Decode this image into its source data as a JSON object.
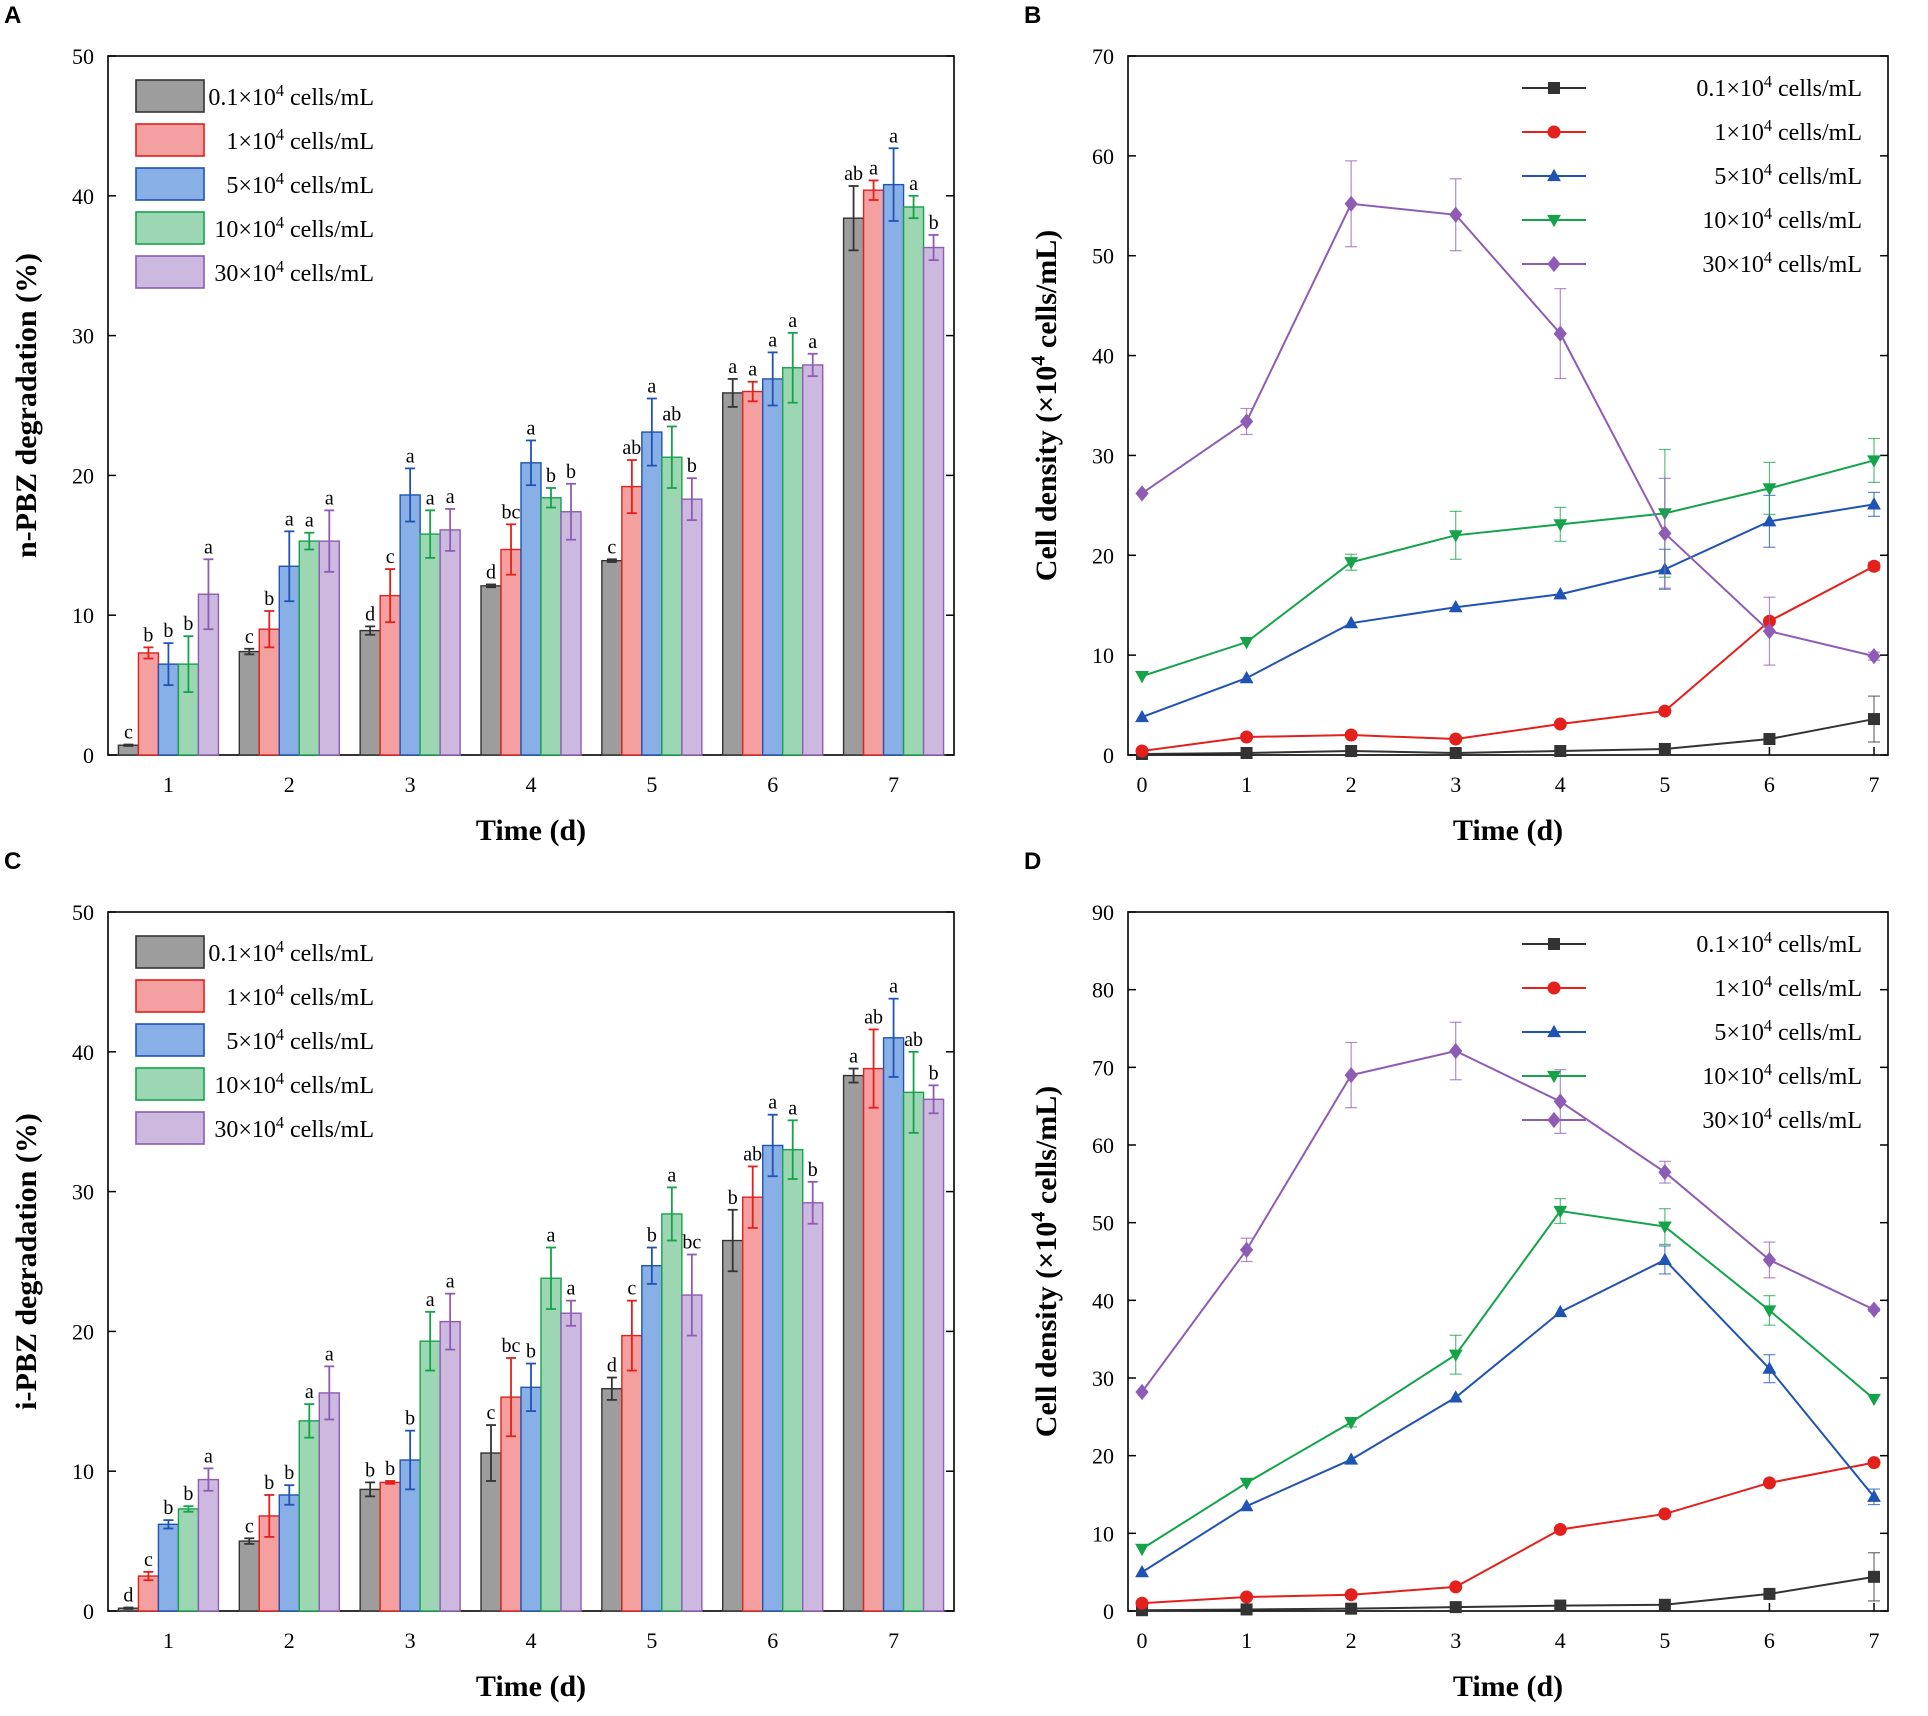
{
  "colors": {
    "0.1": {
      "stroke": "#333333",
      "fill": "#9d9d9d"
    },
    "1": {
      "stroke": "#e3201b",
      "fill": "#f4a0a0"
    },
    "5": {
      "stroke": "#1f53b4",
      "fill": "#89b0e6"
    },
    "10": {
      "stroke": "#15a34a",
      "fill": "#9dd6b2"
    },
    "30": {
      "stroke": "#8e5cb4",
      "fill": "#cdb8e0"
    }
  },
  "chart_data": [
    {
      "panel": "A",
      "type": "bar",
      "xlabel": "Time (d)",
      "ylabel": "n-PBZ degradation (%)",
      "ylim": [
        0,
        50
      ],
      "yticks": [
        "0",
        "10",
        "20",
        "30",
        "40",
        "50"
      ],
      "categories": [
        "1",
        "2",
        "3",
        "4",
        "5",
        "6",
        "7"
      ],
      "legend_position": "top-left",
      "series": [
        {
          "key": "0.1",
          "base": "0.1×10",
          "exp": "4",
          "unit": " cells/mL",
          "values": [
            0.7,
            7.4,
            8.9,
            12.1,
            13.9,
            25.9,
            38.4
          ],
          "errors": [
            0.05,
            0.2,
            0.3,
            0.1,
            0.1,
            1.0,
            2.3
          ],
          "labels": [
            "c",
            "c",
            "d",
            "d",
            "c",
            "a",
            "ab"
          ]
        },
        {
          "key": "1",
          "base": "1×10",
          "exp": "4",
          "unit": " cells/mL",
          "values": [
            7.3,
            9.0,
            11.4,
            14.7,
            19.2,
            26.0,
            40.4
          ],
          "errors": [
            0.4,
            1.3,
            1.9,
            1.8,
            1.9,
            0.7,
            0.7
          ],
          "labels": [
            "b",
            "b",
            "c",
            "bc",
            "ab",
            "a",
            "a"
          ]
        },
        {
          "key": "5",
          "base": "5×10",
          "exp": "4",
          "unit": " cells/mL",
          "values": [
            6.5,
            13.5,
            18.6,
            20.9,
            23.1,
            26.9,
            40.8
          ],
          "errors": [
            1.5,
            2.5,
            1.9,
            1.6,
            2.4,
            1.9,
            2.6
          ],
          "labels": [
            "b",
            "a",
            "a",
            "a",
            "a",
            "a",
            "a"
          ]
        },
        {
          "key": "10",
          "base": "10×10",
          "exp": "4",
          "unit": " cells/mL",
          "values": [
            6.5,
            15.3,
            15.8,
            18.4,
            21.3,
            27.7,
            39.2
          ],
          "errors": [
            2.0,
            0.6,
            1.7,
            0.7,
            2.2,
            2.5,
            0.8
          ],
          "labels": [
            "b",
            "a",
            "a",
            "b",
            "ab",
            "a",
            "a"
          ]
        },
        {
          "key": "30",
          "base": "30×10",
          "exp": "4",
          "unit": " cells/mL",
          "values": [
            11.5,
            15.3,
            16.1,
            17.4,
            18.3,
            27.9,
            36.3
          ],
          "errors": [
            2.5,
            2.2,
            1.5,
            2.0,
            1.5,
            0.8,
            0.9
          ],
          "labels": [
            "a",
            "a",
            "a",
            "b",
            "b",
            "a",
            "b"
          ]
        }
      ]
    },
    {
      "panel": "B",
      "type": "line",
      "xlabel": "Time (d)",
      "ylabel_base": "Cell density (×10",
      "ylabel_exp": "4",
      "ylabel_unit": " cells/mL)",
      "ylim": [
        0,
        70
      ],
      "yticks": [
        "0",
        "10",
        "20",
        "30",
        "40",
        "50",
        "60",
        "70"
      ],
      "x": [
        0,
        1,
        2,
        3,
        4,
        5,
        6,
        7
      ],
      "xticks": [
        "0",
        "1",
        "2",
        "3",
        "4",
        "5",
        "6",
        "7"
      ],
      "legend_position": "top-right",
      "series": [
        {
          "key": "0.1",
          "marker": "square",
          "base": "0.1×10",
          "exp": "4",
          "unit": " cells/mL",
          "values": [
            0.1,
            0.2,
            0.4,
            0.2,
            0.4,
            0.6,
            1.6,
            3.6
          ],
          "errors": [
            0,
            0,
            0,
            0,
            0,
            0.3,
            0.3,
            2.3
          ]
        },
        {
          "key": "1",
          "marker": "circle",
          "base": "1×10",
          "exp": "4",
          "unit": " cells/mL",
          "values": [
            0.4,
            1.8,
            2.0,
            1.6,
            3.1,
            4.4,
            13.4,
            18.9
          ],
          "errors": [
            0,
            0,
            0,
            0,
            0,
            0,
            0,
            0.4
          ]
        },
        {
          "key": "5",
          "marker": "triangle-up",
          "base": "5×10",
          "exp": "4",
          "unit": " cells/mL",
          "values": [
            3.8,
            7.7,
            13.2,
            14.8,
            16.1,
            18.6,
            23.4,
            25.1
          ],
          "errors": [
            0,
            0,
            0,
            0,
            0,
            2.0,
            2.6,
            1.2
          ]
        },
        {
          "key": "10",
          "marker": "triangle-down",
          "base": "10×10",
          "exp": "4",
          "unit": " cells/mL",
          "values": [
            7.9,
            11.3,
            19.3,
            22.0,
            23.1,
            24.2,
            26.7,
            29.5
          ],
          "errors": [
            0,
            0,
            0.8,
            2.4,
            1.7,
            6.4,
            2.6,
            2.2
          ]
        },
        {
          "key": "30",
          "marker": "diamond",
          "base": "30×10",
          "exp": "4",
          "unit": " cells/mL",
          "values": [
            26.2,
            33.4,
            55.2,
            54.1,
            42.2,
            22.2,
            12.4,
            9.9
          ],
          "errors": [
            0,
            1.3,
            4.3,
            3.6,
            4.5,
            5.5,
            3.4,
            0.4
          ]
        }
      ]
    },
    {
      "panel": "C",
      "type": "bar",
      "xlabel": "Time (d)",
      "ylabel": "i-PBZ degradation (%)",
      "ylim": [
        0,
        50
      ],
      "yticks": [
        "0",
        "10",
        "20",
        "30",
        "40",
        "50"
      ],
      "categories": [
        "1",
        "2",
        "3",
        "4",
        "5",
        "6",
        "7"
      ],
      "legend_position": "top-left",
      "series": [
        {
          "key": "0.1",
          "base": "0.1×10",
          "exp": "4",
          "unit": " cells/mL",
          "values": [
            0.2,
            5.0,
            8.7,
            11.3,
            15.9,
            26.5,
            38.3
          ],
          "errors": [
            0.05,
            0.2,
            0.5,
            2.0,
            0.8,
            2.2,
            0.5
          ],
          "labels": [
            "d",
            "c",
            "b",
            "c",
            "d",
            "b",
            "a"
          ]
        },
        {
          "key": "1",
          "base": "1×10",
          "exp": "4",
          "unit": " cells/mL",
          "values": [
            2.5,
            6.8,
            9.2,
            15.3,
            19.7,
            29.6,
            38.8
          ],
          "errors": [
            0.3,
            1.5,
            0.1,
            2.8,
            2.5,
            2.2,
            2.8
          ],
          "labels": [
            "c",
            "b",
            "b",
            "bc",
            "c",
            "ab",
            "ab"
          ]
        },
        {
          "key": "5",
          "base": "5×10",
          "exp": "4",
          "unit": " cells/mL",
          "values": [
            6.2,
            8.3,
            10.8,
            16.0,
            24.7,
            33.3,
            41.0
          ],
          "errors": [
            0.3,
            0.7,
            2.1,
            1.7,
            1.3,
            2.2,
            2.8
          ],
          "labels": [
            "b",
            "b",
            "b",
            "b",
            "b",
            "a",
            "a"
          ]
        },
        {
          "key": "10",
          "base": "10×10",
          "exp": "4",
          "unit": " cells/mL",
          "values": [
            7.3,
            13.6,
            19.3,
            23.8,
            28.4,
            33.0,
            37.1
          ],
          "errors": [
            0.2,
            1.2,
            2.1,
            2.2,
            1.9,
            2.1,
            2.9
          ],
          "labels": [
            "b",
            "a",
            "a",
            "a",
            "a",
            "a",
            "ab"
          ]
        },
        {
          "key": "30",
          "base": "30×10",
          "exp": "4",
          "unit": " cells/mL",
          "values": [
            9.4,
            15.6,
            20.7,
            21.3,
            22.6,
            29.2,
            36.6
          ],
          "errors": [
            0.8,
            1.9,
            2.0,
            0.9,
            2.9,
            1.5,
            1.0
          ],
          "labels": [
            "a",
            "a",
            "a",
            "a",
            "bc",
            "b",
            "b"
          ]
        }
      ]
    },
    {
      "panel": "D",
      "type": "line",
      "xlabel": "Time (d)",
      "ylabel_base": "Cell density (×10",
      "ylabel_exp": "4",
      "ylabel_unit": " cells/mL)",
      "ylim": [
        0,
        90
      ],
      "yticks": [
        "0",
        "10",
        "20",
        "30",
        "40",
        "50",
        "60",
        "70",
        "80",
        "90"
      ],
      "x": [
        0,
        1,
        2,
        3,
        4,
        5,
        6,
        7
      ],
      "xticks": [
        "0",
        "1",
        "2",
        "3",
        "4",
        "5",
        "6",
        "7"
      ],
      "legend_position": "top-right",
      "series": [
        {
          "key": "0.1",
          "marker": "square",
          "base": "0.1×10",
          "exp": "4",
          "unit": " cells/mL",
          "values": [
            0.1,
            0.2,
            0.3,
            0.5,
            0.7,
            0.8,
            2.2,
            4.4
          ],
          "errors": [
            0,
            0,
            0,
            0,
            0,
            0,
            0.3,
            3.1
          ]
        },
        {
          "key": "1",
          "marker": "circle",
          "base": "1×10",
          "exp": "4",
          "unit": " cells/mL",
          "values": [
            1.0,
            1.8,
            2.1,
            3.1,
            10.5,
            12.5,
            16.5,
            19.1
          ],
          "errors": [
            0,
            0,
            0,
            0,
            0,
            0,
            0,
            0
          ]
        },
        {
          "key": "5",
          "marker": "triangle-up",
          "base": "5×10",
          "exp": "4",
          "unit": " cells/mL",
          "values": [
            5.0,
            13.5,
            19.5,
            27.5,
            38.5,
            45.2,
            31.2,
            14.7
          ],
          "errors": [
            0,
            0,
            0,
            0,
            0,
            1.8,
            1.8,
            1.0
          ]
        },
        {
          "key": "10",
          "marker": "triangle-down",
          "base": "10×10",
          "exp": "4",
          "unit": " cells/mL",
          "values": [
            8.0,
            16.5,
            24.3,
            33.0,
            51.5,
            49.5,
            38.7,
            27.3
          ],
          "errors": [
            0,
            0,
            0.6,
            2.5,
            1.6,
            2.3,
            1.9,
            0
          ]
        },
        {
          "key": "30",
          "marker": "diamond",
          "base": "30×10",
          "exp": "4",
          "unit": " cells/mL",
          "values": [
            28.2,
            46.5,
            69.0,
            72.1,
            65.6,
            56.5,
            45.2,
            38.8
          ],
          "errors": [
            0,
            1.5,
            4.2,
            3.7,
            4.1,
            1.4,
            2.3,
            0.2
          ]
        }
      ]
    }
  ]
}
